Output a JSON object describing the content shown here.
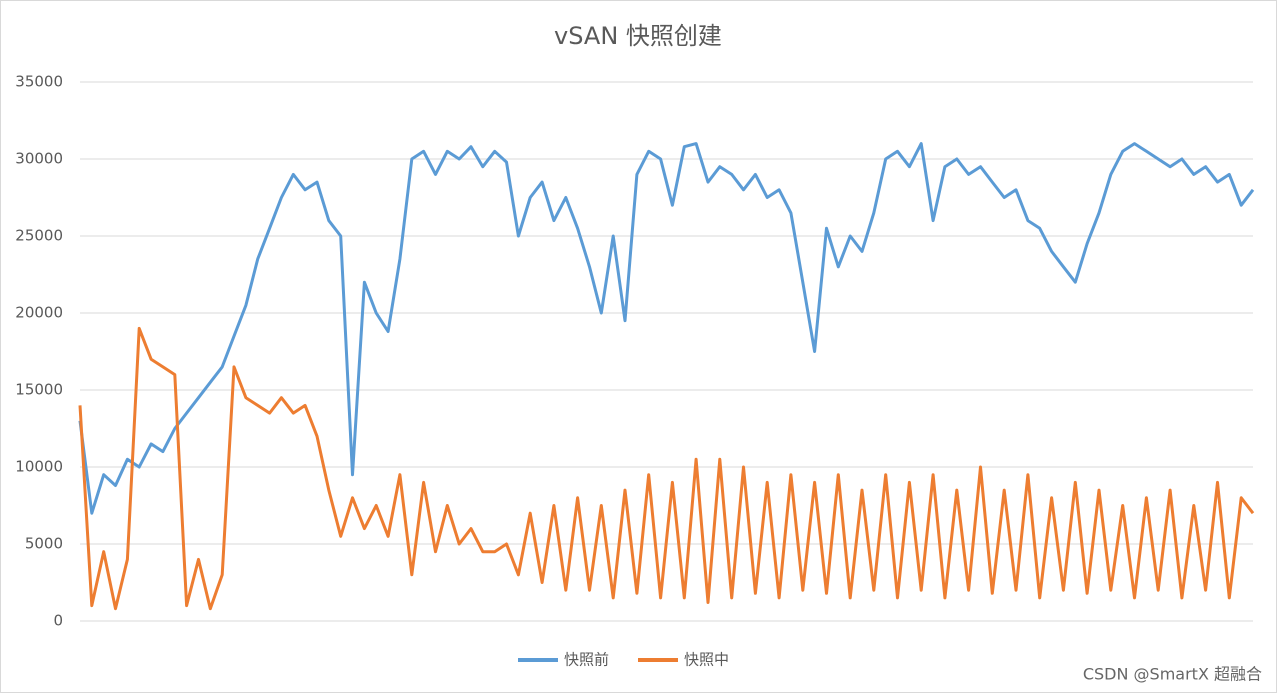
{
  "chart_data": {
    "type": "line",
    "title": "vSAN 快照创建",
    "categories": [
      null,
      null,
      null,
      null,
      null,
      null,
      null,
      null,
      null,
      null,
      null,
      null,
      null,
      null,
      null,
      null,
      null,
      null,
      null,
      null,
      null,
      null,
      null,
      null,
      null,
      null,
      null,
      null,
      null,
      null,
      null,
      null,
      null,
      null,
      null,
      null,
      null,
      null,
      null,
      null,
      null,
      null,
      null,
      null,
      null,
      null,
      null,
      null,
      null,
      null,
      null,
      null,
      null,
      null,
      null,
      null,
      null,
      null,
      null,
      null,
      null,
      null,
      null,
      null,
      null,
      null,
      null,
      null,
      null,
      null,
      null,
      null,
      null,
      null,
      null,
      null,
      null,
      null,
      null,
      null,
      null,
      null,
      null,
      null,
      null,
      null,
      null,
      null,
      null,
      null,
      null,
      null,
      null,
      null,
      null,
      null,
      null,
      null,
      null,
      null
    ],
    "series": [
      {
        "name": "快照前",
        "color": "#5b9bd5",
        "values": [
          13000,
          7000,
          9500,
          8800,
          10500,
          10000,
          11500,
          11000,
          12500,
          13500,
          14500,
          15500,
          16500,
          18500,
          20500,
          23500,
          25500,
          27500,
          29000,
          28000,
          28500,
          26000,
          25000,
          9500,
          22000,
          20000,
          18800,
          23500,
          30000,
          30500,
          29000,
          30500,
          30000,
          30800,
          29500,
          30500,
          29800,
          25000,
          27500,
          28500,
          26000,
          27500,
          25500,
          23000,
          20000,
          25000,
          19500,
          29000,
          30500,
          30000,
          27000,
          30800,
          31000,
          28500,
          29500,
          29000,
          28000,
          29000,
          27500,
          28000,
          26500,
          22000,
          17500,
          25500,
          23000,
          25000,
          24000,
          26500,
          30000,
          30500,
          29500,
          31000,
          26000,
          29500,
          30000,
          29000,
          29500,
          28500,
          27500,
          28000,
          26000,
          25500,
          24000,
          23000,
          22000,
          24500,
          26500,
          29000,
          30500,
          31000,
          30500,
          30000,
          29500,
          30000,
          29000,
          29500,
          28500,
          29000,
          27000,
          28000
        ]
      },
      {
        "name": "快照中",
        "color": "#ed7d31",
        "values": [
          14000,
          1000,
          4500,
          800,
          4000,
          19000,
          17000,
          16500,
          16000,
          1000,
          4000,
          800,
          3000,
          16500,
          14500,
          14000,
          13500,
          14500,
          13500,
          14000,
          12000,
          8500,
          5500,
          8000,
          6000,
          7500,
          5500,
          9500,
          3000,
          9000,
          4500,
          7500,
          5000,
          6000,
          4500,
          4500,
          5000,
          3000,
          7000,
          2500,
          7500,
          2000,
          8000,
          2000,
          7500,
          1500,
          8500,
          1800,
          9500,
          1500,
          9000,
          1500,
          10500,
          1200,
          10500,
          1500,
          10000,
          1800,
          9000,
          1500,
          9500,
          2000,
          9000,
          1800,
          9500,
          1500,
          8500,
          2000,
          9500,
          1500,
          9000,
          2000,
          9500,
          1500,
          8500,
          2000,
          10000,
          1800,
          8500,
          2000,
          9500,
          1500,
          8000,
          2000,
          9000,
          1800,
          8500,
          2000,
          7500,
          1500,
          8000,
          2000,
          8500,
          1500,
          7500,
          2000,
          9000,
          1500,
          8000,
          7000
        ]
      }
    ],
    "ylim": [
      0,
      35000
    ],
    "yticks": [
      0,
      5000,
      10000,
      15000,
      20000,
      25000,
      30000,
      35000
    ],
    "grid": true,
    "legend": "bottom"
  },
  "watermark": "CSDN @SmartX 超融合"
}
